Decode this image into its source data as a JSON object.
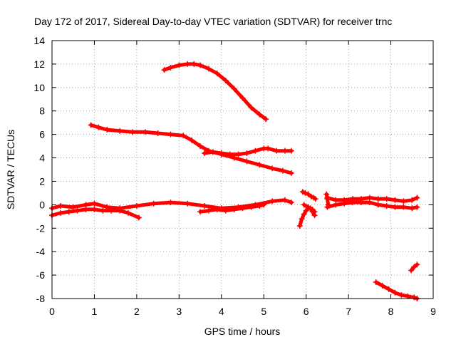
{
  "chart_data": {
    "type": "scatter",
    "title": "Day 172 of 2017, Sidereal Day-to-day VTEC variation (SDTVAR) for receiver trnc",
    "xlabel": "GPS time / hours",
    "ylabel": "SDTVAR / TECUs",
    "xlim": [
      0,
      9
    ],
    "ylim": [
      -8,
      14
    ],
    "xticks": [
      0,
      1,
      2,
      3,
      4,
      5,
      6,
      7,
      8,
      9
    ],
    "yticks": [
      -8,
      -6,
      -4,
      -2,
      0,
      2,
      4,
      6,
      8,
      10,
      12,
      14
    ],
    "grid": true,
    "marker": "plus",
    "color": "#ff0000",
    "series": [
      {
        "name": "arc-1",
        "x": [
          2.65,
          2.8,
          3.0,
          3.2,
          3.35,
          3.5,
          3.7,
          3.9,
          4.1,
          4.3,
          4.5,
          4.7,
          4.9,
          5.05
        ],
        "y": [
          11.5,
          11.7,
          11.9,
          12.0,
          12.0,
          11.9,
          11.6,
          11.2,
          10.6,
          9.9,
          9.1,
          8.3,
          7.7,
          7.3
        ]
      },
      {
        "name": "arc-2",
        "x": [
          0.92,
          1.1,
          1.3,
          1.6,
          1.9,
          2.2,
          2.5,
          2.8,
          3.1,
          3.3,
          3.5,
          3.7,
          4.0,
          4.3,
          4.6,
          4.9,
          5.2,
          5.45,
          5.65
        ],
        "y": [
          6.8,
          6.6,
          6.4,
          6.3,
          6.2,
          6.2,
          6.1,
          6.0,
          5.9,
          5.5,
          5.0,
          4.6,
          4.3,
          4.0,
          3.7,
          3.4,
          3.1,
          2.9,
          2.7
        ]
      },
      {
        "name": "arc-3",
        "x": [
          3.6,
          3.8,
          4.0,
          4.2,
          4.4,
          4.6,
          4.8,
          5.0,
          5.1,
          5.3,
          5.5,
          5.65
        ],
        "y": [
          4.4,
          4.5,
          4.4,
          4.3,
          4.3,
          4.4,
          4.6,
          4.8,
          4.8,
          4.6,
          4.6,
          4.6
        ]
      },
      {
        "name": "arc-4",
        "x": [
          0.0,
          0.2,
          0.4,
          0.6,
          0.8,
          1.0,
          1.2,
          1.4,
          1.6,
          1.8,
          2.05
        ],
        "y": [
          -0.9,
          -0.7,
          -0.6,
          -0.5,
          -0.4,
          -0.4,
          -0.5,
          -0.5,
          -0.5,
          -0.7,
          -1.1
        ]
      },
      {
        "name": "arc-5",
        "x": [
          0.0,
          0.2,
          0.5,
          0.8,
          1.0,
          1.3,
          1.6,
          2.0,
          2.4,
          2.8,
          3.2,
          3.6,
          4.0,
          4.4,
          4.8,
          5.2,
          5.5,
          5.65
        ],
        "y": [
          -0.3,
          -0.1,
          -0.2,
          0.0,
          0.1,
          -0.2,
          -0.3,
          -0.1,
          0.1,
          0.2,
          0.1,
          -0.1,
          -0.3,
          -0.2,
          0.0,
          0.3,
          0.4,
          0.2
        ]
      },
      {
        "name": "arc-6",
        "x": [
          3.5,
          3.7,
          3.9,
          4.1,
          4.3,
          4.5,
          4.7,
          4.9,
          5.0
        ],
        "y": [
          -0.6,
          -0.5,
          -0.4,
          -0.5,
          -0.4,
          -0.3,
          -0.2,
          -0.1,
          0.0
        ]
      },
      {
        "name": "arc-7",
        "x": [
          5.92,
          5.98,
          6.05,
          6.12,
          6.18,
          6.22
        ],
        "y": [
          1.1,
          1.0,
          0.9,
          0.7,
          0.6,
          0.5
        ]
      },
      {
        "name": "arc-8",
        "x": [
          5.85,
          5.9,
          5.95,
          6.0,
          6.05,
          6.1,
          6.15,
          6.2
        ],
        "y": [
          -1.8,
          -1.2,
          -0.8,
          -0.5,
          -0.3,
          -0.3,
          -0.6,
          -0.9
        ]
      },
      {
        "name": "arc-9",
        "x": [
          5.95,
          6.05,
          6.15,
          6.2
        ],
        "y": [
          0.0,
          -0.2,
          -0.4,
          -0.6
        ]
      },
      {
        "name": "arc-10",
        "x": [
          6.5,
          6.7,
          6.9,
          7.1,
          7.3,
          7.5,
          7.7,
          7.9,
          8.1,
          8.3,
          8.5,
          8.62
        ],
        "y": [
          0.6,
          0.4,
          0.4,
          0.5,
          0.5,
          0.6,
          0.5,
          0.5,
          0.4,
          0.3,
          0.4,
          0.6
        ]
      },
      {
        "name": "arc-11",
        "x": [
          6.5,
          6.7,
          6.9,
          7.1,
          7.3,
          7.5,
          7.7,
          7.9,
          8.1,
          8.3,
          8.5,
          8.62
        ],
        "y": [
          -0.2,
          0.0,
          0.1,
          0.2,
          0.2,
          0.2,
          0.0,
          -0.1,
          -0.2,
          -0.2,
          -0.3,
          -0.2
        ]
      },
      {
        "name": "arc-12",
        "x": [
          6.48,
          6.5,
          6.52
        ],
        "y": [
          0.9,
          0.5,
          0.0
        ]
      },
      {
        "name": "arc-13",
        "x": [
          7.65,
          7.8,
          7.95,
          8.1,
          8.25,
          8.4,
          8.55,
          8.62
        ],
        "y": [
          -6.6,
          -6.9,
          -7.2,
          -7.5,
          -7.7,
          -7.8,
          -7.9,
          -8.0
        ]
      },
      {
        "name": "arc-14",
        "x": [
          8.48,
          8.55,
          8.62
        ],
        "y": [
          -5.6,
          -5.3,
          -5.1
        ]
      }
    ]
  }
}
